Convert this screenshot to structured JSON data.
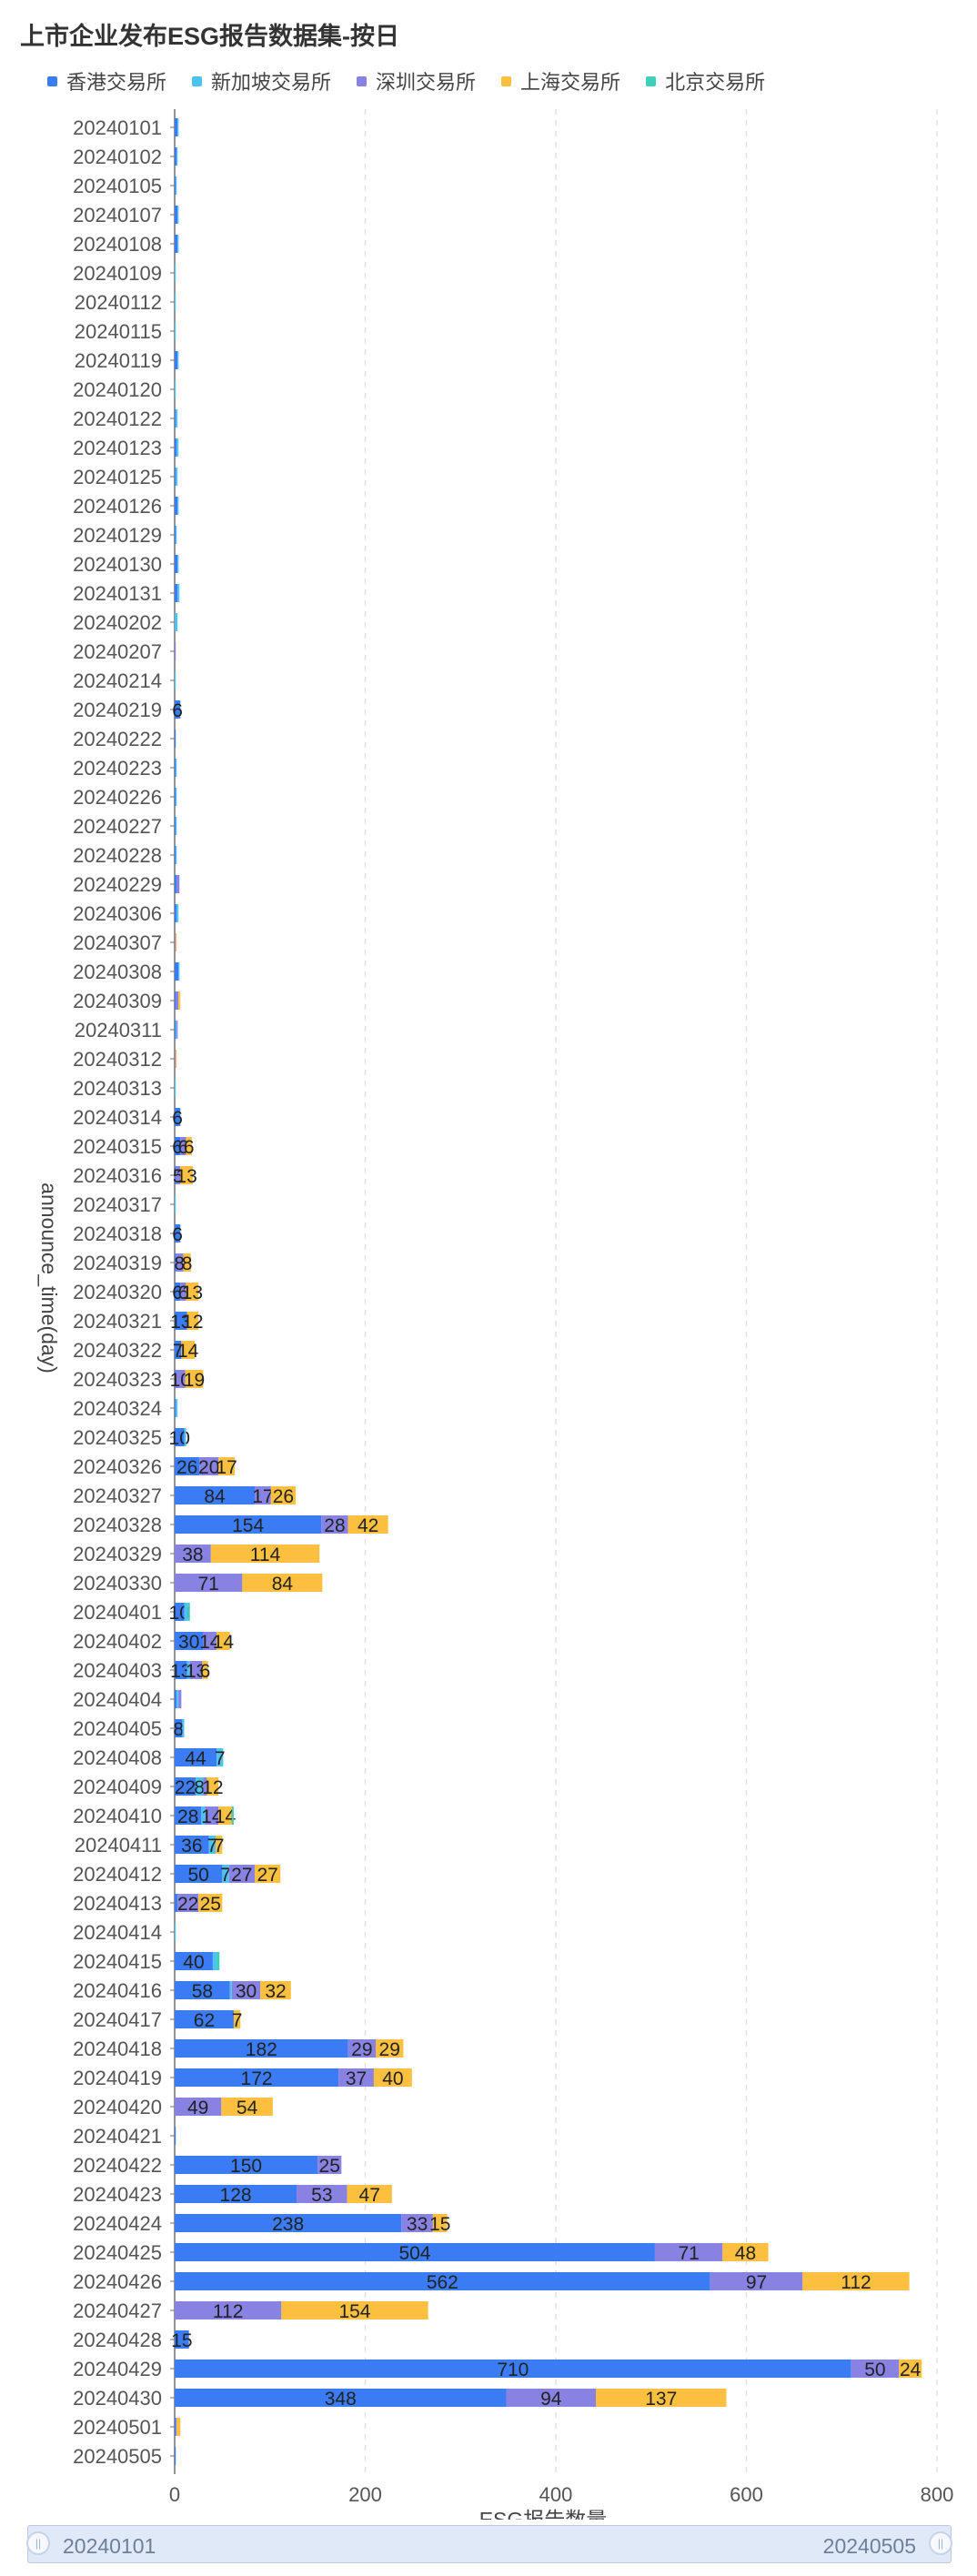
{
  "title": "上市企业发布ESG报告数据集-按日",
  "legend": [
    {
      "name": "香港交易所",
      "color": "#3b7cf5"
    },
    {
      "name": "新加坡交易所",
      "color": "#4fc3f0"
    },
    {
      "name": "深圳交易所",
      "color": "#8882e2"
    },
    {
      "name": "上海交易所",
      "color": "#fcc040"
    },
    {
      "name": "北京交易所",
      "color": "#3ccfb9"
    }
  ],
  "slider": {
    "start_label": "20240101",
    "end_label": "20240505"
  },
  "chart_data": {
    "type": "bar",
    "orientation": "horizontal",
    "stacked": true,
    "title": "上市企业发布ESG报告数据集-按日",
    "xlabel": "ESG报告数量",
    "ylabel": "announce_time(day)",
    "xlim": [
      0,
      800
    ],
    "xticks": [
      0,
      200,
      400,
      600,
      800
    ],
    "grid": "vertical dashed",
    "legend_position": "top",
    "categories": [
      "20240101",
      "20240102",
      "20240105",
      "20240107",
      "20240108",
      "20240109",
      "20240112",
      "20240115",
      "20240119",
      "20240120",
      "20240122",
      "20240123",
      "20240125",
      "20240126",
      "20240129",
      "20240130",
      "20240131",
      "20240202",
      "20240207",
      "20240214",
      "20240219",
      "20240222",
      "20240223",
      "20240226",
      "20240227",
      "20240228",
      "20240229",
      "20240306",
      "20240307",
      "20240308",
      "20240309",
      "20240311",
      "20240312",
      "20240313",
      "20240314",
      "20240315",
      "20240316",
      "20240317",
      "20240318",
      "20240319",
      "20240320",
      "20240321",
      "20240322",
      "20240323",
      "20240324",
      "20240325",
      "20240326",
      "20240327",
      "20240328",
      "20240329",
      "20240330",
      "20240401",
      "20240402",
      "20240403",
      "20240404",
      "20240405",
      "20240408",
      "20240409",
      "20240410",
      "20240411",
      "20240412",
      "20240413",
      "20240414",
      "20240415",
      "20240416",
      "20240417",
      "20240418",
      "20240419",
      "20240420",
      "20240421",
      "20240422",
      "20240423",
      "20240424",
      "20240425",
      "20240426",
      "20240427",
      "20240428",
      "20240429",
      "20240430",
      "20240501",
      "20240505"
    ],
    "series": [
      {
        "name": "香港交易所",
        "values": [
          3,
          2,
          1,
          3,
          3,
          0,
          0,
          0,
          3,
          0,
          1,
          2,
          1,
          3,
          1,
          3,
          3,
          0,
          0,
          0,
          6,
          1,
          1,
          1,
          1,
          1,
          2,
          2,
          0,
          4,
          1,
          1,
          0,
          0,
          6,
          6,
          1,
          0,
          6,
          1,
          6,
          13,
          7,
          1,
          1,
          10,
          26,
          84,
          154,
          0,
          0,
          10,
          30,
          13,
          2,
          8,
          44,
          22,
          28,
          36,
          50,
          3,
          0,
          40,
          58,
          62,
          182,
          172,
          0,
          1,
          150,
          128,
          238,
          504,
          562,
          0,
          15,
          710,
          348,
          1,
          1
        ]
      },
      {
        "name": "新加坡交易所",
        "values": [
          1,
          1,
          1,
          1,
          1,
          1,
          1,
          1,
          1,
          1,
          2,
          2,
          2,
          1,
          1,
          1,
          2,
          3,
          0,
          1,
          0,
          0,
          1,
          1,
          1,
          1,
          0,
          2,
          0,
          1,
          0,
          1,
          0,
          1,
          0,
          0,
          0,
          1,
          0,
          0,
          0,
          0,
          0,
          0,
          2,
          2,
          0,
          0,
          0,
          0,
          0,
          4,
          0,
          3,
          2,
          2,
          7,
          8,
          4,
          7,
          7,
          0,
          1,
          4,
          2,
          0,
          0,
          0,
          0,
          0,
          0,
          0,
          0,
          0,
          0,
          0,
          0,
          0,
          0,
          0,
          0
        ]
      },
      {
        "name": "深圳交易所",
        "values": [
          0,
          0,
          0,
          0,
          0,
          0,
          0,
          0,
          0,
          0,
          0,
          0,
          0,
          0,
          0,
          0,
          0,
          0,
          1,
          0,
          0,
          0,
          0,
          0,
          0,
          0,
          3,
          0,
          1,
          0,
          3,
          1,
          1,
          0,
          0,
          6,
          5,
          0,
          0,
          8,
          6,
          0,
          0,
          10,
          0,
          0,
          20,
          17,
          28,
          38,
          71,
          0,
          14,
          13,
          3,
          0,
          0,
          4,
          14,
          0,
          27,
          22,
          0,
          0,
          30,
          0,
          29,
          37,
          49,
          0,
          25,
          53,
          33,
          71,
          97,
          112,
          0,
          50,
          94,
          1,
          0
        ]
      },
      {
        "name": "上海交易所",
        "values": [
          0,
          0,
          0,
          0,
          0,
          0,
          0,
          0,
          0,
          0,
          0,
          0,
          0,
          0,
          0,
          0,
          0,
          0,
          0,
          0,
          0,
          0,
          0,
          0,
          0,
          0,
          0,
          0,
          1,
          0,
          2,
          0,
          1,
          0,
          0,
          6,
          13,
          0,
          0,
          8,
          13,
          12,
          14,
          19,
          0,
          0,
          17,
          26,
          42,
          114,
          84,
          0,
          14,
          6,
          0,
          0,
          0,
          12,
          14,
          7,
          27,
          25,
          0,
          0,
          32,
          7,
          29,
          40,
          54,
          0,
          0,
          47,
          15,
          48,
          112,
          154,
          0,
          24,
          137,
          4,
          0
        ]
      },
      {
        "name": "北京交易所",
        "values": [
          0,
          0,
          0,
          0,
          0,
          0,
          0,
          0,
          0,
          0,
          0,
          0,
          0,
          0,
          0,
          0,
          0,
          0,
          0,
          0,
          0,
          0,
          0,
          0,
          0,
          0,
          0,
          0,
          0,
          0,
          0,
          0,
          0,
          0,
          0,
          0,
          0,
          0,
          0,
          0,
          0,
          0,
          0,
          0,
          0,
          0,
          0,
          0,
          0,
          0,
          0,
          2,
          0,
          0,
          0,
          0,
          0,
          0,
          2,
          0,
          0,
          0,
          0,
          3,
          0,
          0,
          0,
          0,
          0,
          0,
          0,
          0,
          0,
          0,
          0,
          0,
          0,
          0,
          0,
          0,
          0
        ]
      }
    ]
  }
}
